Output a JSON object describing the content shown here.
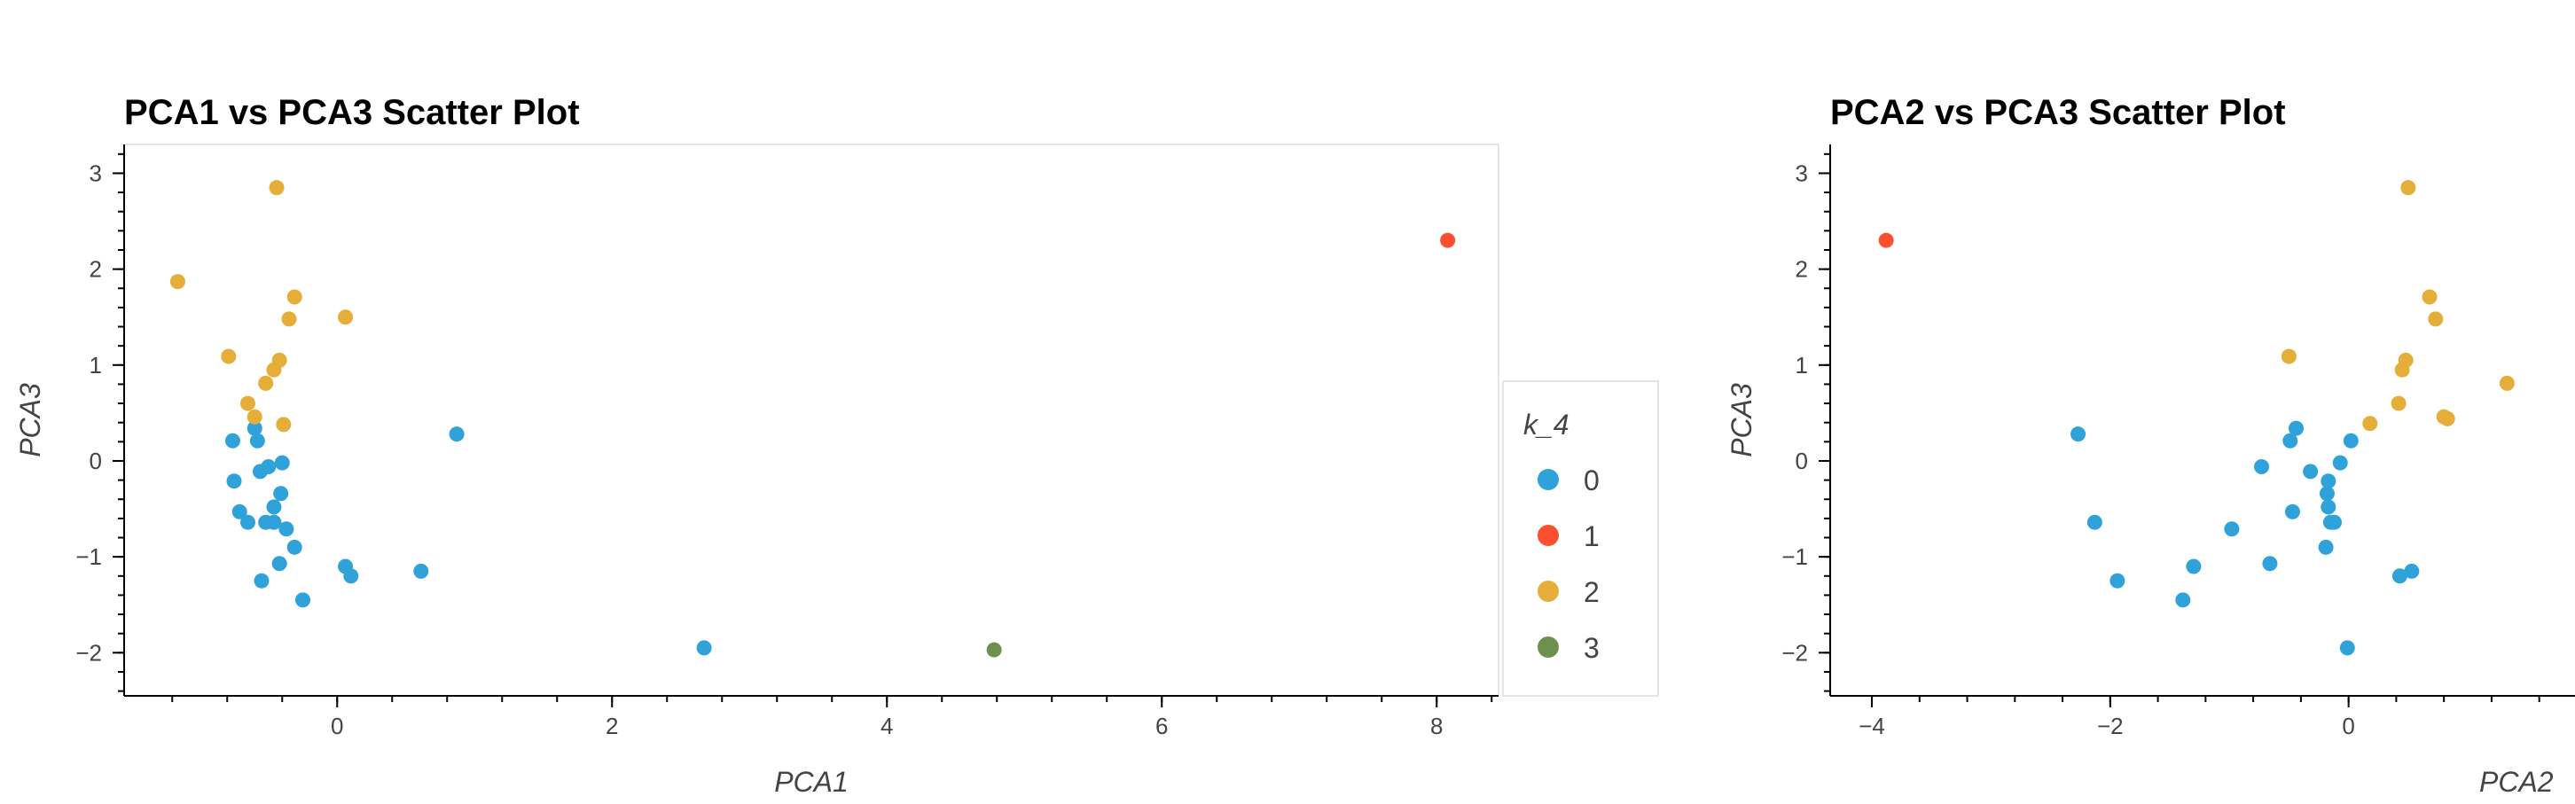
{
  "colors": {
    "0": "#30a2da",
    "1": "#fc4f30",
    "2": "#e5ae38",
    "3": "#6d904f",
    "axis": "#000000",
    "frame": "#e5e5e5"
  },
  "legend": {
    "title": "k_4",
    "items": [
      "0",
      "1",
      "2",
      "3"
    ]
  },
  "chart_data": [
    {
      "type": "scatter",
      "title": "PCA1 vs PCA3 Scatter Plot",
      "xlabel": "PCA1",
      "ylabel": "PCA3",
      "xlim": [
        -1.55,
        8.45
      ],
      "ylim": [
        -2.45,
        3.3
      ],
      "xticks": [
        0,
        2,
        4,
        6,
        8
      ],
      "yticks": [
        -2,
        -1,
        0,
        1,
        2,
        3
      ],
      "xtick_labels": [
        "0",
        "2",
        "4",
        "6",
        "8"
      ],
      "ytick_labels": [
        "−2",
        "−1",
        "0",
        "1",
        "2",
        "3"
      ],
      "grid": false,
      "legend_position": "right",
      "series": [
        {
          "name": "0",
          "x": [
            -0.76,
            -0.6,
            -0.58,
            -0.75,
            -0.56,
            -0.5,
            -0.4,
            -0.71,
            -0.41,
            -0.46,
            -0.65,
            -0.52,
            -0.46,
            -0.37,
            -0.31,
            -0.55,
            -0.42,
            0.06,
            0.1,
            0.61,
            0.87,
            -0.25,
            2.67
          ],
          "y": [
            0.21,
            0.34,
            0.21,
            -0.21,
            -0.11,
            -0.06,
            -0.02,
            -0.53,
            -0.34,
            -0.48,
            -0.64,
            -0.64,
            -0.64,
            -0.71,
            -0.9,
            -1.25,
            -1.07,
            -1.1,
            -1.2,
            -1.15,
            0.28,
            -1.45,
            -1.95
          ]
        },
        {
          "name": "1",
          "x": [
            8.08
          ],
          "y": [
            2.3
          ]
        },
        {
          "name": "2",
          "x": [
            -1.16,
            -0.44,
            -0.79,
            -0.31,
            -0.35,
            0.06,
            -0.42,
            -0.46,
            -0.52,
            -0.65,
            -0.6,
            -0.39
          ],
          "y": [
            1.87,
            2.85,
            1.09,
            1.71,
            1.48,
            1.5,
            1.05,
            0.95,
            0.81,
            0.6,
            0.46,
            0.38
          ]
        },
        {
          "name": "3",
          "x": [
            4.78
          ],
          "y": [
            -1.97
          ]
        }
      ]
    },
    {
      "type": "scatter",
      "title": "PCA2 vs PCA3 Scatter Plot",
      "xlabel": "PCA2",
      "ylabel": "PCA3",
      "xlim": [
        -4.35,
        1.9
      ],
      "ylim": [
        -2.45,
        3.3
      ],
      "xticks": [
        -4,
        -2,
        0
      ],
      "yticks": [
        -2,
        -1,
        0,
        1,
        2,
        3
      ],
      "xtick_labels": [
        "−4",
        "−2",
        "0"
      ],
      "ytick_labels": [
        "−2",
        "−1",
        "0",
        "1",
        "2",
        "3"
      ],
      "grid": false,
      "series": [
        {
          "name": "0",
          "x": [
            -2.27,
            -0.44,
            -0.49,
            0.02,
            -0.73,
            -0.07,
            -0.32,
            -0.17,
            -0.18,
            -0.47,
            -0.17,
            -2.13,
            -0.12,
            -0.15,
            -0.98,
            -0.19,
            -1.94,
            -1.3,
            -0.66,
            0.43,
            0.53,
            -1.39,
            -0.01
          ],
          "y": [
            0.28,
            0.34,
            0.21,
            0.21,
            -0.06,
            -0.02,
            -0.11,
            -0.21,
            -0.34,
            -0.53,
            -0.48,
            -0.64,
            -0.64,
            -0.64,
            -0.71,
            -0.9,
            -1.25,
            -1.1,
            -1.07,
            -1.2,
            -1.15,
            -1.45,
            -1.95
          ]
        },
        {
          "name": "1",
          "x": [
            -3.88
          ],
          "y": [
            2.3
          ]
        },
        {
          "name": "2",
          "x": [
            0.5,
            0.68,
            0.73,
            0.48,
            0.45,
            1.33,
            -0.5,
            0.8,
            0.83,
            0.18,
            0.42
          ],
          "y": [
            2.85,
            1.71,
            1.48,
            1.05,
            0.95,
            0.81,
            1.09,
            0.46,
            0.44,
            0.39,
            0.6
          ]
        }
      ]
    }
  ]
}
